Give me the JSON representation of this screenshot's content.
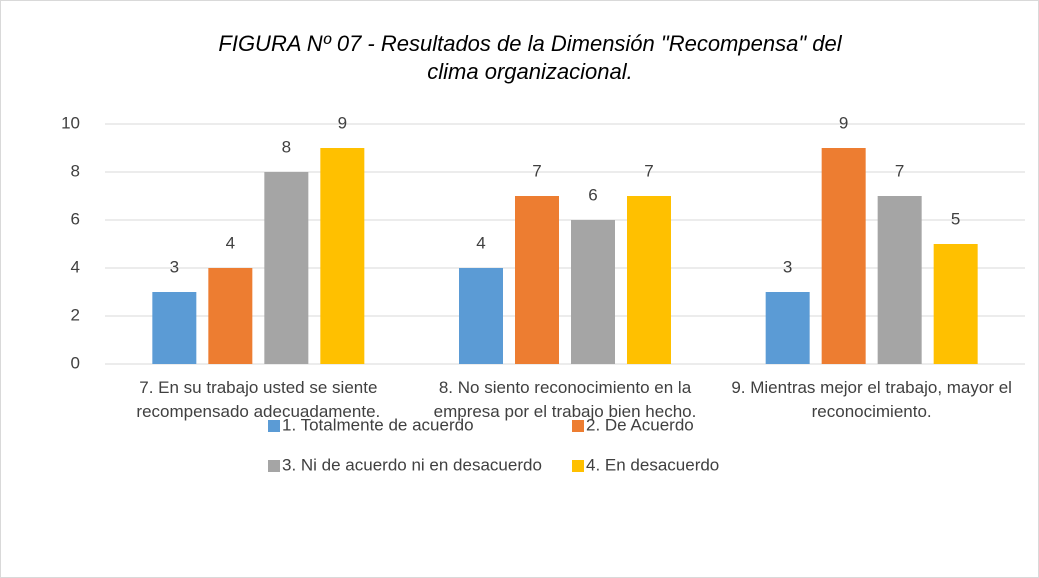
{
  "chart_data": {
    "type": "bar",
    "title": "FIGURA Nº 07 -  Resultados de la Dimensión \"Recompensa\" del clima organizacional.",
    "categories": [
      "7. En su trabajo usted se siente recompensado adecuadamente.",
      "8. No siento reconocimiento en la empresa por el trabajo bien hecho.",
      "9. Mientras mejor el trabajo, mayor el reconocimiento."
    ],
    "series": [
      {
        "name": "1. Totalmente de acuerdo",
        "color": "#5b9bd5",
        "values": [
          3,
          4,
          3
        ]
      },
      {
        "name": "2. De Acuerdo",
        "color": "#ed7d31",
        "values": [
          4,
          7,
          9
        ]
      },
      {
        "name": "3. Ni de acuerdo ni en desacuerdo",
        "color": "#a5a5a5",
        "values": [
          8,
          6,
          7
        ]
      },
      {
        "name": "4. En desacuerdo",
        "color": "#ffc000",
        "values": [
          9,
          7,
          5
        ]
      }
    ],
    "ylim": [
      0,
      10
    ],
    "yticks": [
      0,
      2,
      4,
      6,
      8,
      10
    ],
    "grid": true,
    "legend": "bottom"
  }
}
